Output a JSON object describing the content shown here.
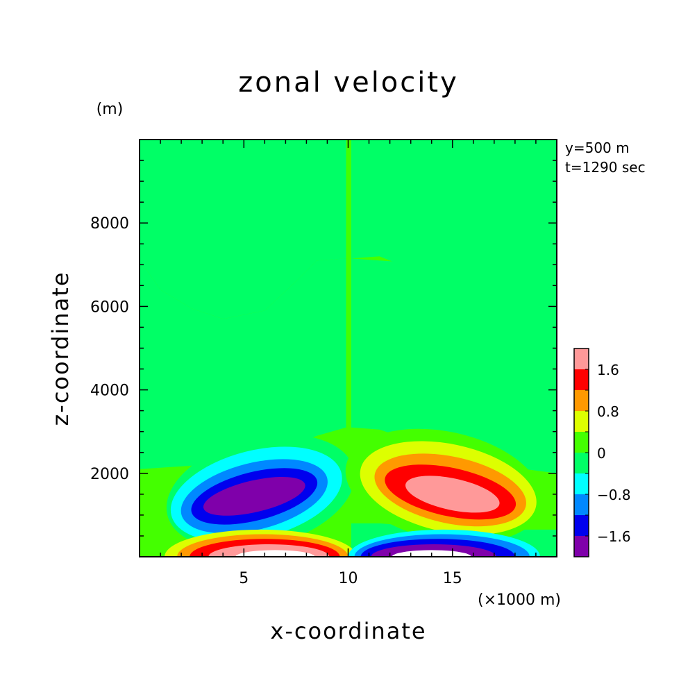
{
  "chart_data": {
    "type": "heatmap",
    "title": "zonal velocity",
    "xlabel": "x-coordinate",
    "ylabel": "z-coordinate",
    "x_unit": "(×1000 m)",
    "y_unit": "(m)",
    "annotations": [
      "y=500 m",
      "t=1290 sec"
    ],
    "xlim": [
      0,
      20
    ],
    "ylim": [
      0,
      10000
    ],
    "x_ticks": [
      5,
      10,
      15
    ],
    "x_tick_labels": [
      "5",
      "10",
      "15"
    ],
    "y_ticks": [
      2000,
      4000,
      6000,
      8000
    ],
    "y_tick_labels": [
      "2000",
      "4000",
      "6000",
      "8000"
    ],
    "colorbar": {
      "levels": [
        -2.0,
        -1.6,
        -1.2,
        -0.8,
        -0.4,
        0,
        0.4,
        0.8,
        1.2,
        1.6,
        2.0
      ],
      "tick_values": [
        -1.6,
        -0.8,
        0,
        0.8,
        1.6
      ],
      "tick_labels": [
        "−1.6",
        "−0.8",
        "0",
        "0.8",
        "1.6"
      ],
      "colors": [
        "#7f00aa",
        "#0000ee",
        "#0088ff",
        "#00ffff",
        "#00ff66",
        "#44ff00",
        "#ddff00",
        "#ff9900",
        "#ff0000",
        "#ff9999"
      ]
    },
    "field_colors": {
      "band_0_to_0.4": "#44ff00",
      "band_-0.4_to_0": "#00ff66",
      "above_2.0": "#ffffff",
      "below_-2.0": "#ffffff"
    },
    "features": [
      {
        "label": "negative jet",
        "x_center": 6.0,
        "z_center": 1400,
        "min_value": -1.8
      },
      {
        "label": "positive jet",
        "x_center": 15.0,
        "z_center": 1400,
        "max_value": 1.9
      },
      {
        "label": "surface positive",
        "x_center": 6.5,
        "z_center": 0,
        "max_value": 2.2
      },
      {
        "label": "surface negative",
        "x_center": 14.0,
        "z_center": 0,
        "min_value": -2.2
      }
    ]
  }
}
